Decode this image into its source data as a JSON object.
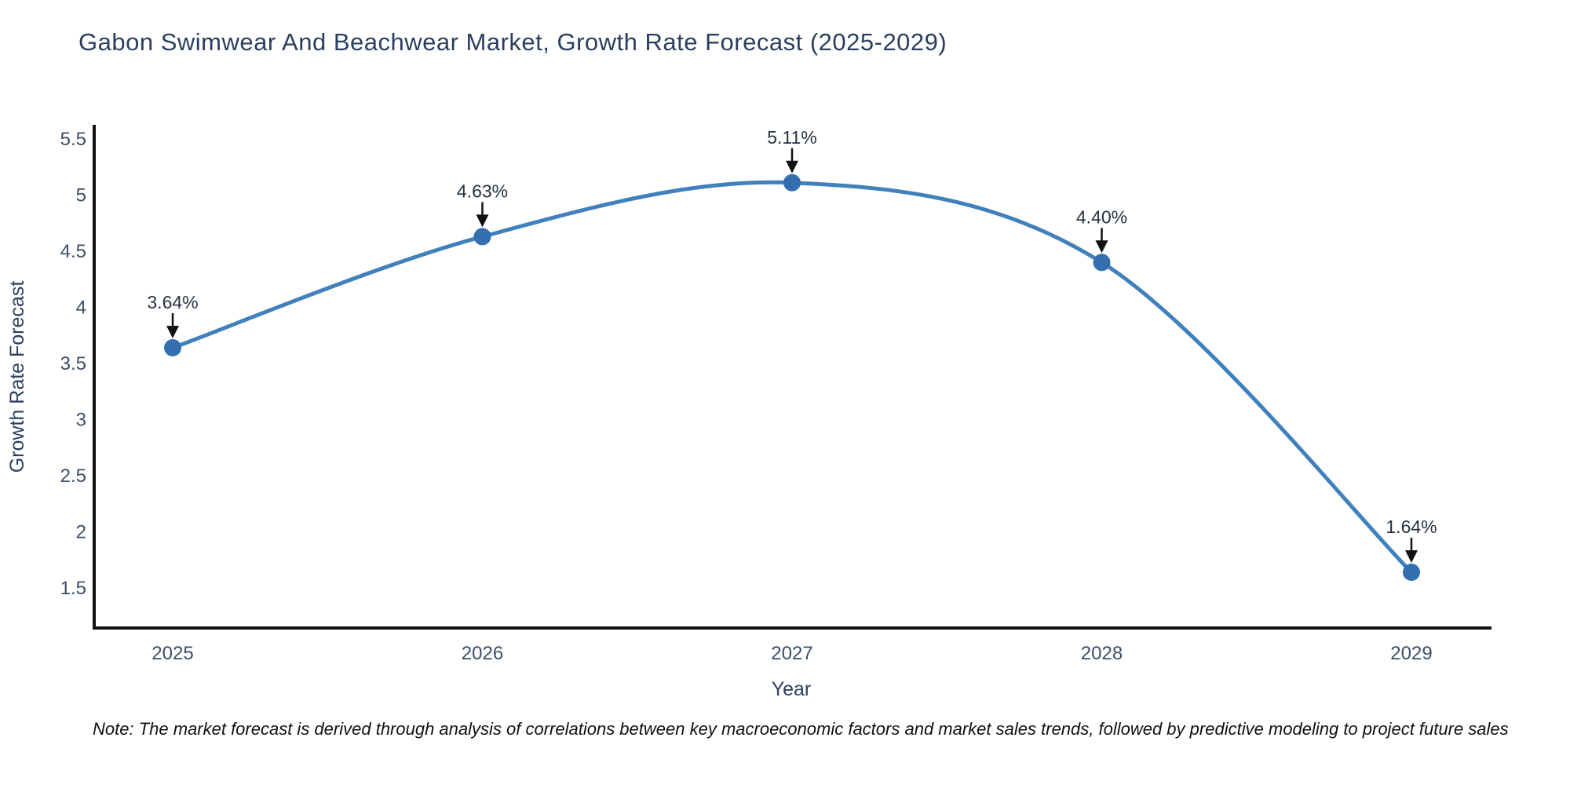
{
  "note": "Note: The market forecast is derived through analysis of correlations between key macroeconomic factors and market sales trends, followed by predictive modeling to project future sales",
  "chart_data": {
    "type": "line",
    "title": "Gabon Swimwear And Beachwear Market, Growth Rate Forecast (2025-2029)",
    "categories": [
      "2025",
      "2026",
      "2027",
      "2028",
      "2029"
    ],
    "values": [
      3.64,
      4.63,
      5.11,
      4.4,
      1.64
    ],
    "point_labels": [
      "3.64%",
      "4.63%",
      "5.11%",
      "4.40%",
      "1.64%"
    ],
    "xlabel": "Year",
    "ylabel": "Growth Rate Forecast",
    "yticks": [
      1.5,
      2,
      2.5,
      3,
      3.5,
      4,
      4.5,
      5,
      5.5
    ],
    "ylim": [
      1.14,
      5.64
    ],
    "grid": false,
    "legend": false,
    "curve": "spline",
    "annotation_arrows": true,
    "line_color": "#4181bb",
    "marker_color": "#336fae",
    "axis_color": "#111111",
    "text_color": "#2a3f5f"
  }
}
